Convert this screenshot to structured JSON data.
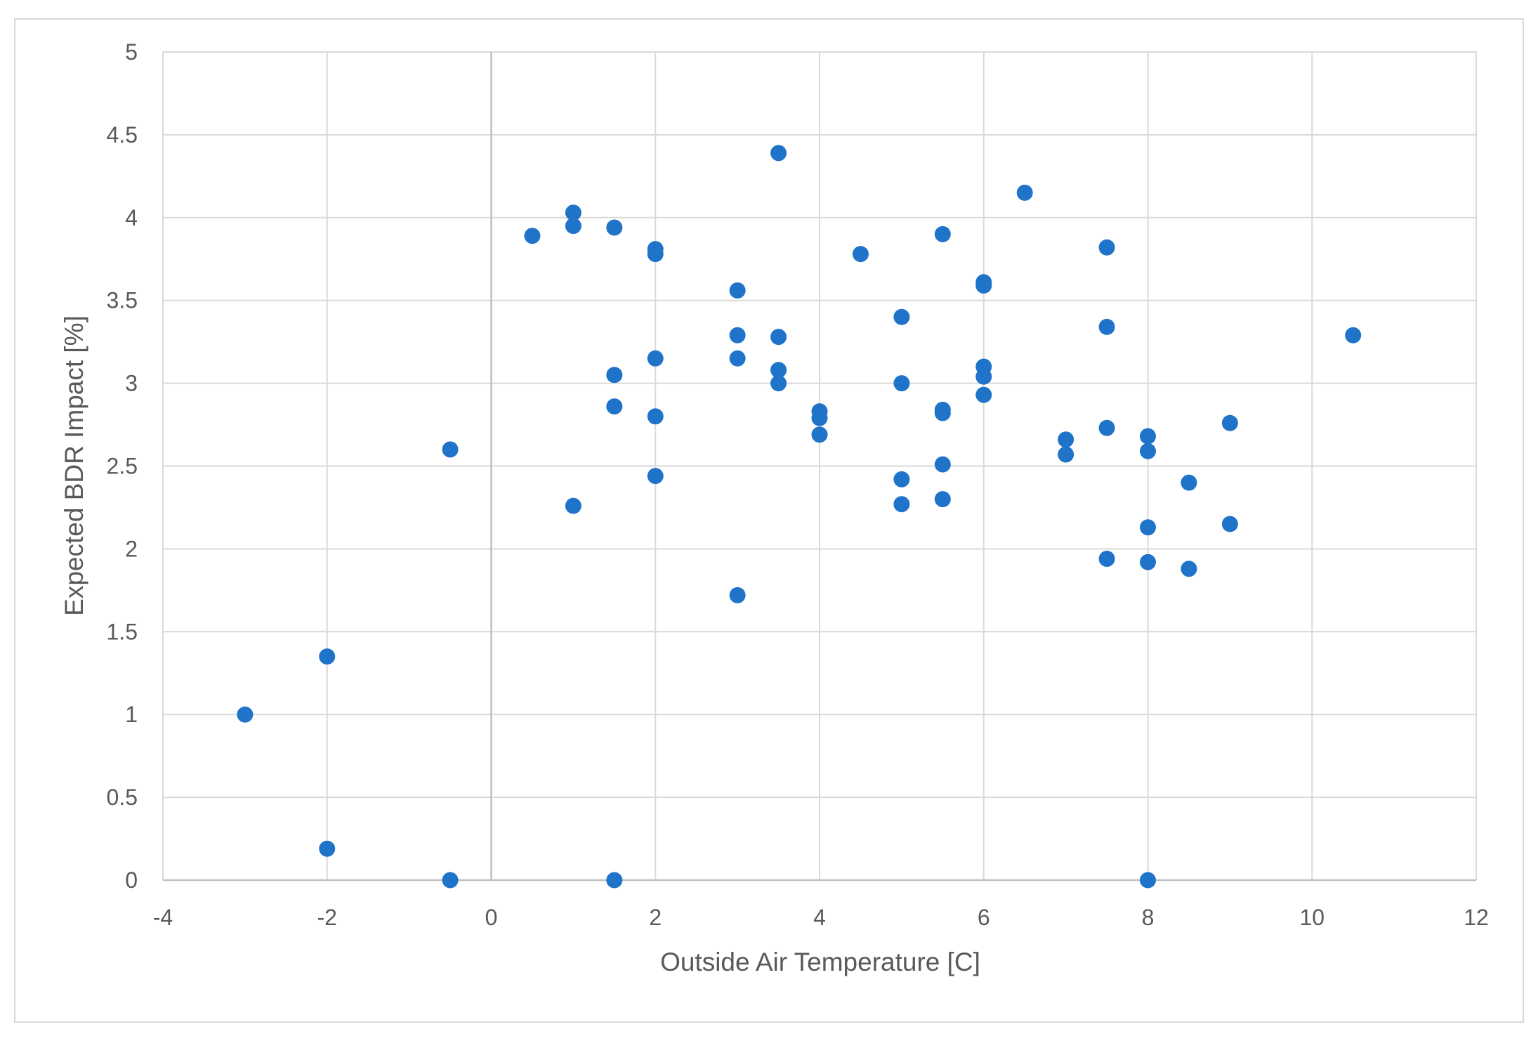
{
  "chart_data": {
    "type": "scatter",
    "title": "",
    "xlabel": "Outside Air Temperature [C]",
    "ylabel": "Expected BDR Impact [%]",
    "xlim": [
      -4,
      12
    ],
    "ylim": [
      0,
      5
    ],
    "x_ticks": [
      -4,
      -2,
      0,
      2,
      4,
      6,
      8,
      10,
      12
    ],
    "y_ticks": [
      0,
      0.5,
      1,
      1.5,
      2,
      2.5,
      3,
      3.5,
      4,
      4.5,
      5
    ],
    "x_tick_labels": [
      "-4",
      "-2",
      "0",
      "2",
      "4",
      "6",
      "8",
      "10",
      "12"
    ],
    "y_tick_labels": [
      "0",
      "0.5",
      "1",
      "1.5",
      "2",
      "2.5",
      "3",
      "3.5",
      "4",
      "4.5",
      "5"
    ],
    "grid": true,
    "legend": "none",
    "marker_color": "#1f73c9",
    "series": [
      {
        "points": [
          [
            -3,
            1.0
          ],
          [
            -2,
            1.35
          ],
          [
            -2,
            0.19
          ],
          [
            -0.5,
            2.6
          ],
          [
            -0.5,
            0.0
          ],
          [
            0.5,
            3.89
          ],
          [
            1,
            4.03
          ],
          [
            1,
            3.95
          ],
          [
            1,
            2.26
          ],
          [
            1.5,
            3.94
          ],
          [
            1.5,
            3.05
          ],
          [
            1.5,
            2.86
          ],
          [
            1.5,
            0.0
          ],
          [
            2,
            3.81
          ],
          [
            2,
            3.78
          ],
          [
            2,
            3.15
          ],
          [
            2,
            2.8
          ],
          [
            2,
            2.44
          ],
          [
            3,
            3.56
          ],
          [
            3,
            3.29
          ],
          [
            3,
            3.15
          ],
          [
            3,
            1.72
          ],
          [
            3.5,
            4.39
          ],
          [
            3.5,
            3.28
          ],
          [
            3.5,
            3.08
          ],
          [
            3.5,
            3.0
          ],
          [
            4,
            2.83
          ],
          [
            4,
            2.79
          ],
          [
            4,
            2.69
          ],
          [
            4.5,
            3.78
          ],
          [
            5,
            3.4
          ],
          [
            5,
            3.0
          ],
          [
            5,
            2.42
          ],
          [
            5,
            2.27
          ],
          [
            5.5,
            3.9
          ],
          [
            5.5,
            2.84
          ],
          [
            5.5,
            2.82
          ],
          [
            5.5,
            2.51
          ],
          [
            5.5,
            2.3
          ],
          [
            6,
            3.61
          ],
          [
            6,
            3.59
          ],
          [
            6,
            3.1
          ],
          [
            6,
            3.04
          ],
          [
            6,
            2.93
          ],
          [
            6.5,
            4.15
          ],
          [
            7,
            2.66
          ],
          [
            7,
            2.57
          ],
          [
            7.5,
            3.82
          ],
          [
            7.5,
            3.34
          ],
          [
            7.5,
            2.73
          ],
          [
            7.5,
            1.94
          ],
          [
            8,
            2.68
          ],
          [
            8,
            2.59
          ],
          [
            8,
            2.13
          ],
          [
            8,
            1.92
          ],
          [
            8,
            0.0
          ],
          [
            8.5,
            2.4
          ],
          [
            8.5,
            1.88
          ],
          [
            9,
            2.76
          ],
          [
            9,
            2.15
          ],
          [
            10.5,
            3.29
          ]
        ]
      }
    ]
  }
}
